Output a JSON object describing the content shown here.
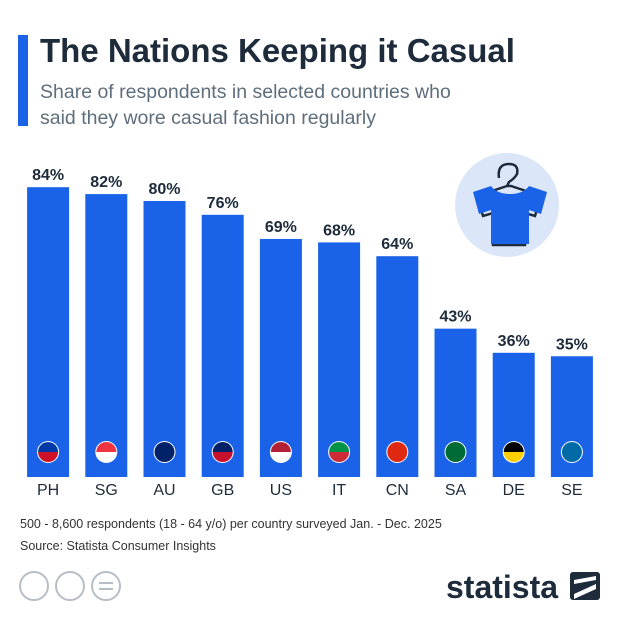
{
  "chart_data": {
    "type": "bar",
    "title": "The Nations Keeping it Casual",
    "subtitle": "Share of respondents in selected countries who said they wore casual fashion regularly",
    "categories": [
      "PH",
      "SG",
      "AU",
      "GB",
      "US",
      "IT",
      "CN",
      "SA",
      "DE",
      "SE"
    ],
    "values": [
      84,
      82,
      80,
      76,
      69,
      68,
      64,
      43,
      36,
      35
    ],
    "value_labels": [
      "84%",
      "82%",
      "80%",
      "76%",
      "69%",
      "68%",
      "64%",
      "43%",
      "36%",
      "35%"
    ],
    "color": "#1a63e8",
    "note": "500 - 8,600 respondents (18 - 64 y/o) per country surveyed Jan. - Dec. 2025",
    "source": "Source: Statista Consumer Insights",
    "brand": "statista"
  }
}
